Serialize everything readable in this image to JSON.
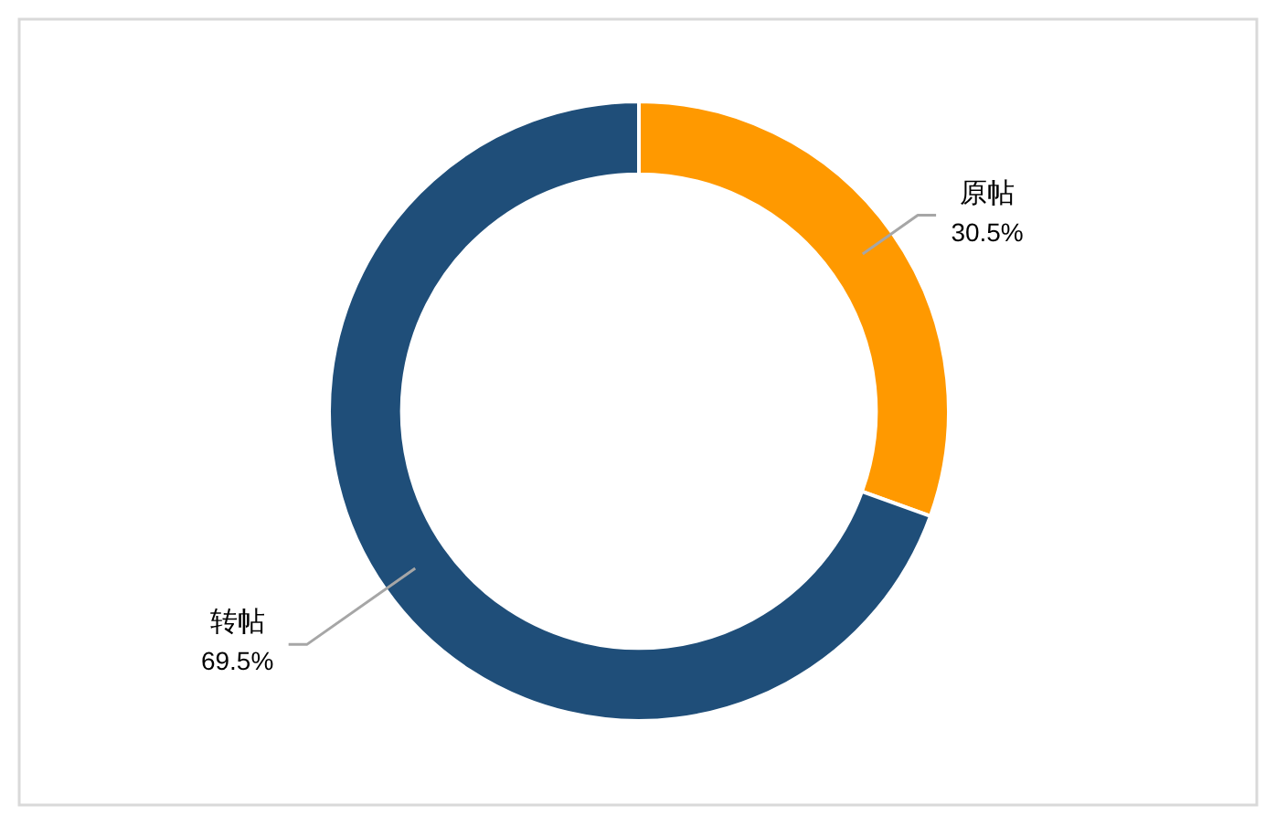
{
  "chart_data": {
    "type": "donut",
    "categories": [
      "原帖",
      "转帖"
    ],
    "values": [
      30.5,
      69.5
    ],
    "colors": [
      "#ff9900",
      "#1f4e79"
    ],
    "value_labels": [
      "30.5%",
      "69.5%"
    ]
  }
}
